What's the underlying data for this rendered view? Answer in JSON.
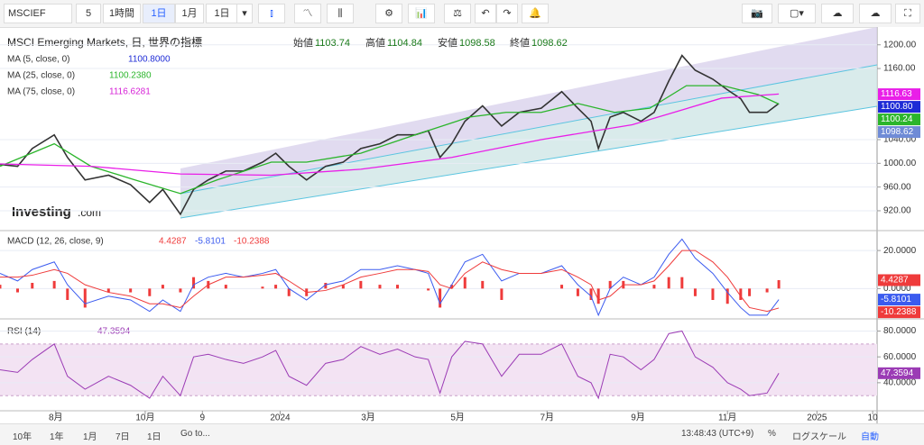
{
  "toolbar": {
    "symbol": "MSCIEF",
    "items": [
      "5",
      "1時間",
      "1日",
      "1月",
      "1日"
    ]
  },
  "chart_data": [
    {
      "type": "line",
      "title": "MSCI Emerging Markets, 日, 世界の指標",
      "ohlc": [
        {
          "name": "始値",
          "value": 1103.74
        },
        {
          "name": "高値",
          "value": 1104.84
        },
        {
          "name": "安値",
          "value": 1098.58
        },
        {
          "name": "終値",
          "value": 1098.62
        }
      ],
      "indicators": [
        {
          "name": "MA (5, close, 0)",
          "value": "1100.8000",
          "color": "#1e2bd6"
        },
        {
          "name": "MA (25, close, 0)",
          "value": "1100.2380",
          "color": "#2bb52b"
        },
        {
          "name": "MA (75, close, 0)",
          "value": "1116.6281",
          "color": "#d61ed6"
        }
      ],
      "watermark": [
        "Investing",
        ".com"
      ],
      "ylim": [
        888,
        1230
      ],
      "yticks": [
        {
          "value": 1200,
          "label": "1200.00"
        },
        {
          "value": 1160,
          "label": "1160.00"
        },
        {
          "value": 1040,
          "label": "1040.00"
        },
        {
          "value": 1000,
          "label": "1000.00"
        },
        {
          "value": 960,
          "label": "960.00"
        },
        {
          "value": 920,
          "label": "920.00"
        }
      ],
      "badges": [
        {
          "value": 1116.63,
          "label": "1116.63",
          "color": "#e91ee8"
        },
        {
          "value": 1100.8,
          "label": "1100.80",
          "color": "#1e2bd6"
        },
        {
          "value": 1100.24,
          "label": "1100.24",
          "color": "#2bb52b"
        },
        {
          "value": 1098.62,
          "label": "1098.62",
          "color": "#6f8bd6"
        }
      ],
      "series": [
        {
          "color": "#333333",
          "x": [
            0,
            12,
            22,
            37,
            46,
            58,
            74,
            89,
            102,
            111,
            123,
            132,
            142,
            154,
            166,
            179,
            188,
            197,
            209,
            222,
            234,
            246,
            259,
            271,
            283,
            292,
            300,
            308,
            317,
            329,
            342,
            354,
            369,
            383,
            394,
            403,
            408,
            416,
            425,
            437,
            446,
            456,
            465,
            474,
            486,
            496,
            505,
            511,
            523,
            531
          ],
          "values": [
            998,
            995,
            1025,
            1048,
            1010,
            972,
            980,
            964,
            934,
            956,
            914,
            956,
            972,
            987,
            987,
            1002,
            1017,
            995,
            972,
            995,
            1002,
            1025,
            1033,
            1048,
            1048,
            1055,
            1010,
            1033,
            1071,
            1097,
            1063,
            1086,
            1093,
            1121,
            1093,
            1071,
            1025,
            1078,
            1086,
            1071,
            1086,
            1139,
            1182,
            1157,
            1142,
            1124,
            1109,
            1086,
            1086,
            1101
          ]
        },
        {
          "color": "#2bb52b",
          "x": [
            0,
            37,
            62,
            92,
            123,
            148,
            185,
            209,
            246,
            283,
            320,
            345,
            369,
            394,
            419,
            443,
            468,
            493,
            517,
            531
          ],
          "values": [
            995,
            1033,
            995,
            972,
            949,
            972,
            1002,
            1002,
            1017,
            1048,
            1078,
            1086,
            1086,
            1101,
            1086,
            1093,
            1131,
            1131,
            1116,
            1100
          ]
        },
        {
          "color": "#e91ee8",
          "x": [
            0,
            62,
            123,
            185,
            246,
            308,
            369,
            431,
            492,
            531
          ],
          "values": [
            999,
            995,
            982,
            980,
            990,
            1010,
            1040,
            1065,
            1110,
            1117
          ]
        }
      ]
    },
    {
      "type": "macd",
      "title": "MACD (12, 26, close, 9)",
      "ylim": [
        -15,
        30
      ],
      "yticks": [
        {
          "value": 20,
          "label": "20.0000"
        },
        {
          "value": 0,
          "label": "0.0000"
        }
      ],
      "x": [
        0,
        12,
        22,
        37,
        46,
        58,
        74,
        89,
        102,
        111,
        123,
        132,
        142,
        154,
        166,
        179,
        188,
        197,
        209,
        222,
        234,
        246,
        259,
        271,
        283,
        292,
        300,
        308,
        317,
        329,
        342,
        354,
        369,
        383,
        394,
        403,
        408,
        416,
        425,
        437,
        446,
        456,
        465,
        474,
        486,
        496,
        505,
        511,
        523,
        531
      ],
      "histogram": {
        "color": "#ef3b3b",
        "values": [
          2,
          -2,
          3,
          4,
          -6,
          -10,
          -2,
          -2,
          -4,
          2,
          -2,
          6,
          4,
          2,
          0,
          1,
          2,
          -4,
          -4,
          3,
          2,
          4,
          2,
          2,
          0,
          -1,
          -10,
          2,
          6,
          4,
          -6,
          0,
          0,
          2,
          -4,
          -6,
          -8,
          4,
          4,
          0,
          2,
          6,
          6,
          -4,
          -6,
          -8,
          -6,
          -4,
          -2,
          4.4287
        ]
      },
      "series": [
        {
          "color": "#3b5bef",
          "values": [
            8,
            4,
            10,
            14,
            2,
            -8,
            -4,
            -6,
            -12,
            -6,
            -12,
            2,
            6,
            8,
            6,
            8,
            10,
            0,
            -6,
            2,
            4,
            10,
            10,
            12,
            10,
            8,
            -8,
            2,
            14,
            18,
            4,
            8,
            8,
            12,
            2,
            -4,
            -14,
            0,
            6,
            2,
            6,
            18,
            26,
            16,
            8,
            -2,
            -10,
            -14,
            -14,
            -5.8101
          ]
        },
        {
          "color": "#ef3b3b",
          "values": [
            6,
            6,
            7,
            10,
            8,
            2,
            -2,
            -4,
            -8,
            -8,
            -10,
            -4,
            2,
            6,
            6,
            7,
            8,
            4,
            -2,
            -1,
            2,
            6,
            8,
            10,
            10,
            9,
            2,
            0,
            8,
            14,
            10,
            8,
            8,
            10,
            6,
            2,
            -6,
            -4,
            2,
            2,
            4,
            12,
            20,
            20,
            14,
            6,
            -4,
            -10,
            -12,
            -10.2388
          ]
        }
      ]
    },
    {
      "type": "rsi",
      "title": "RSI (14)",
      "ylim": [
        19,
        88
      ],
      "band": [
        30,
        70
      ],
      "yticks": [
        {
          "value": 80,
          "label": "80.0000"
        },
        {
          "value": 60,
          "label": "60.0000"
        },
        {
          "value": 40,
          "label": "40.0000"
        }
      ],
      "xlim": [
        0,
        598
      ],
      "xticks": [
        {
          "value": 38,
          "label": "8月"
        },
        {
          "value": 99,
          "label": "10月"
        },
        {
          "value": 138,
          "label": "9"
        },
        {
          "value": 191,
          "label": "2024"
        },
        {
          "value": 251,
          "label": "3月"
        },
        {
          "value": 312,
          "label": "5月"
        },
        {
          "value": 373,
          "label": "7月"
        },
        {
          "value": 435,
          "label": "9月"
        },
        {
          "value": 496,
          "label": "11月"
        },
        {
          "value": 557,
          "label": "2025"
        },
        {
          "value": 595,
          "label": "10"
        }
      ],
      "x": [
        0,
        12,
        22,
        37,
        46,
        58,
        74,
        89,
        102,
        111,
        123,
        132,
        142,
        154,
        166,
        179,
        188,
        197,
        209,
        222,
        234,
        246,
        259,
        271,
        283,
        292,
        300,
        308,
        317,
        329,
        342,
        354,
        369,
        383,
        394,
        403,
        408,
        416,
        425,
        437,
        446,
        456,
        465,
        474,
        486,
        496,
        505,
        511,
        523,
        531
      ],
      "series": [
        {
          "color": "#9b3bb5",
          "values": [
            50,
            48,
            58,
            70,
            45,
            35,
            45,
            38,
            28,
            45,
            30,
            60,
            62,
            58,
            55,
            60,
            65,
            45,
            38,
            55,
            58,
            68,
            62,
            66,
            60,
            58,
            32,
            60,
            72,
            70,
            45,
            62,
            62,
            70,
            45,
            40,
            28,
            62,
            60,
            50,
            58,
            78,
            80,
            60,
            52,
            40,
            35,
            30,
            32,
            47.3594
          ]
        }
      ]
    }
  ],
  "bottom_bar": {
    "ranges": [
      "10年",
      "1年",
      "1月",
      "7日",
      "1日",
      "Go to..."
    ],
    "time": "13:48:43 (UTC+9)",
    "options": [
      "%",
      "ログスケール",
      "自動"
    ]
  }
}
